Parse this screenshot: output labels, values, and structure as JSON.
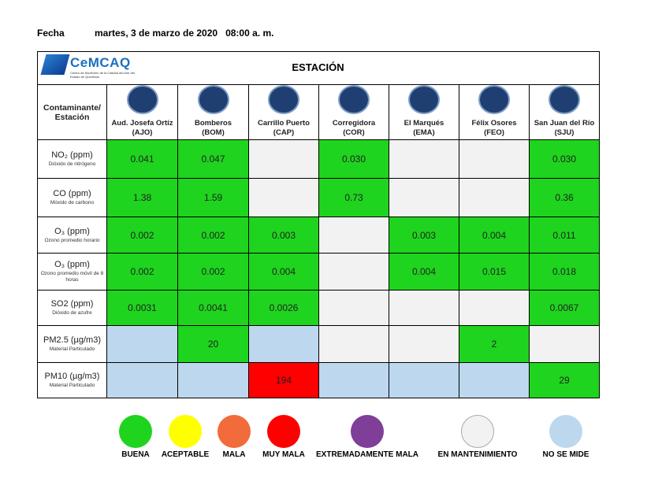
{
  "header": {
    "date_label": "Fecha",
    "date": "martes, 3 de marzo de 2020   08:00 a. m."
  },
  "logo": {
    "name": "CeMCAQ",
    "description": "Centro de Monitoreo de la Calidad del Aire del Estado de Querétaro"
  },
  "table": {
    "title": "ESTACIÓN",
    "corner": "Contaminante/ Estación",
    "stations": [
      {
        "name": "Aud. Josefa Ortíz",
        "code": "(AJO)"
      },
      {
        "name": "Bomberos",
        "code": "(BOM)"
      },
      {
        "name": "Carrillo Puerto",
        "code": "(CAP)"
      },
      {
        "name": "Corregidora",
        "code": "(COR)"
      },
      {
        "name": "El Marqués",
        "code": "(EMA)"
      },
      {
        "name": "Félix Osores",
        "code": "(FEO)"
      },
      {
        "name": "San Juan del Río",
        "code": "(SJU)"
      }
    ],
    "rows": [
      {
        "pollutant": "NO₂ (ppm)",
        "description": "Dióxido de nitrógeno",
        "cells": [
          {
            "value": "0.041",
            "status": 0
          },
          {
            "value": "0.047",
            "status": 0
          },
          {
            "value": null,
            "status": 5
          },
          {
            "value": "0.030",
            "status": 0
          },
          {
            "value": null,
            "status": 5
          },
          {
            "value": null,
            "status": 5
          },
          {
            "value": "0.030",
            "status": 0
          }
        ]
      },
      {
        "pollutant": "CO (ppm)",
        "description": "Móxido de carbono",
        "cells": [
          {
            "value": "1.38",
            "status": 0
          },
          {
            "value": "1.59",
            "status": 0
          },
          {
            "value": null,
            "status": 5
          },
          {
            "value": "0.73",
            "status": 0
          },
          {
            "value": null,
            "status": 5
          },
          {
            "value": null,
            "status": 5
          },
          {
            "value": "0.36",
            "status": 0
          }
        ]
      },
      {
        "pollutant": "O₃ (ppm)",
        "description": "Ozono promedio horario",
        "cells": [
          {
            "value": "0.002",
            "status": 0
          },
          {
            "value": "0.002",
            "status": 0
          },
          {
            "value": "0.003",
            "status": 0
          },
          {
            "value": null,
            "status": 5
          },
          {
            "value": "0.003",
            "status": 0
          },
          {
            "value": "0.004",
            "status": 0
          },
          {
            "value": "0.011",
            "status": 0
          }
        ]
      },
      {
        "pollutant": "O₃ (ppm)",
        "description": "Ozono promedio móvil de 8 horas",
        "cells": [
          {
            "value": "0.002",
            "status": 0
          },
          {
            "value": "0.002",
            "status": 0
          },
          {
            "value": "0.004",
            "status": 0
          },
          {
            "value": null,
            "status": 5
          },
          {
            "value": "0.004",
            "status": 0
          },
          {
            "value": "0.015",
            "status": 0
          },
          {
            "value": "0.018",
            "status": 0
          }
        ]
      },
      {
        "pollutant": "SO2 (ppm)",
        "description": "Dióxido de azufre",
        "cells": [
          {
            "value": "0.0031",
            "status": 0
          },
          {
            "value": "0.0041",
            "status": 0
          },
          {
            "value": "0.0026",
            "status": 0
          },
          {
            "value": null,
            "status": 5
          },
          {
            "value": null,
            "status": 5
          },
          {
            "value": null,
            "status": 5
          },
          {
            "value": "0.0067",
            "status": 0
          }
        ]
      },
      {
        "pollutant": "PM2.5 (µg/m3)",
        "description": "Material Particulado",
        "cells": [
          {
            "value": null,
            "status": 6
          },
          {
            "value": "20",
            "status": 0
          },
          {
            "value": null,
            "status": 6
          },
          {
            "value": null,
            "status": 5
          },
          {
            "value": null,
            "status": 5
          },
          {
            "value": "2",
            "status": 0
          },
          {
            "value": null,
            "status": 5
          }
        ]
      },
      {
        "pollutant": "PM10 (µg/m3)",
        "description": "Material Particulado",
        "cells": [
          {
            "value": null,
            "status": 6
          },
          {
            "value": null,
            "status": 6
          },
          {
            "value": "194",
            "status": 3
          },
          {
            "value": null,
            "status": 6
          },
          {
            "value": null,
            "status": 6
          },
          {
            "value": null,
            "status": 6
          },
          {
            "value": "29",
            "status": 0
          }
        ]
      }
    ]
  },
  "legend": {
    "items": [
      {
        "label": "BUENA",
        "color": "#1ed41e"
      },
      {
        "label": "ACEPTABLE",
        "color": "#ffff00"
      },
      {
        "label": "MALA",
        "color": "#f26b3a"
      },
      {
        "label": "MUY MALA",
        "color": "#ff0000"
      },
      {
        "label": "EXTREMADAMENTE MALA",
        "color": "#7f3f98"
      },
      {
        "label": "EN MANTENIMIENTO",
        "color": "#f2f2f2"
      },
      {
        "label": "NO SE MIDE",
        "color": "#bdd7ee"
      }
    ]
  }
}
